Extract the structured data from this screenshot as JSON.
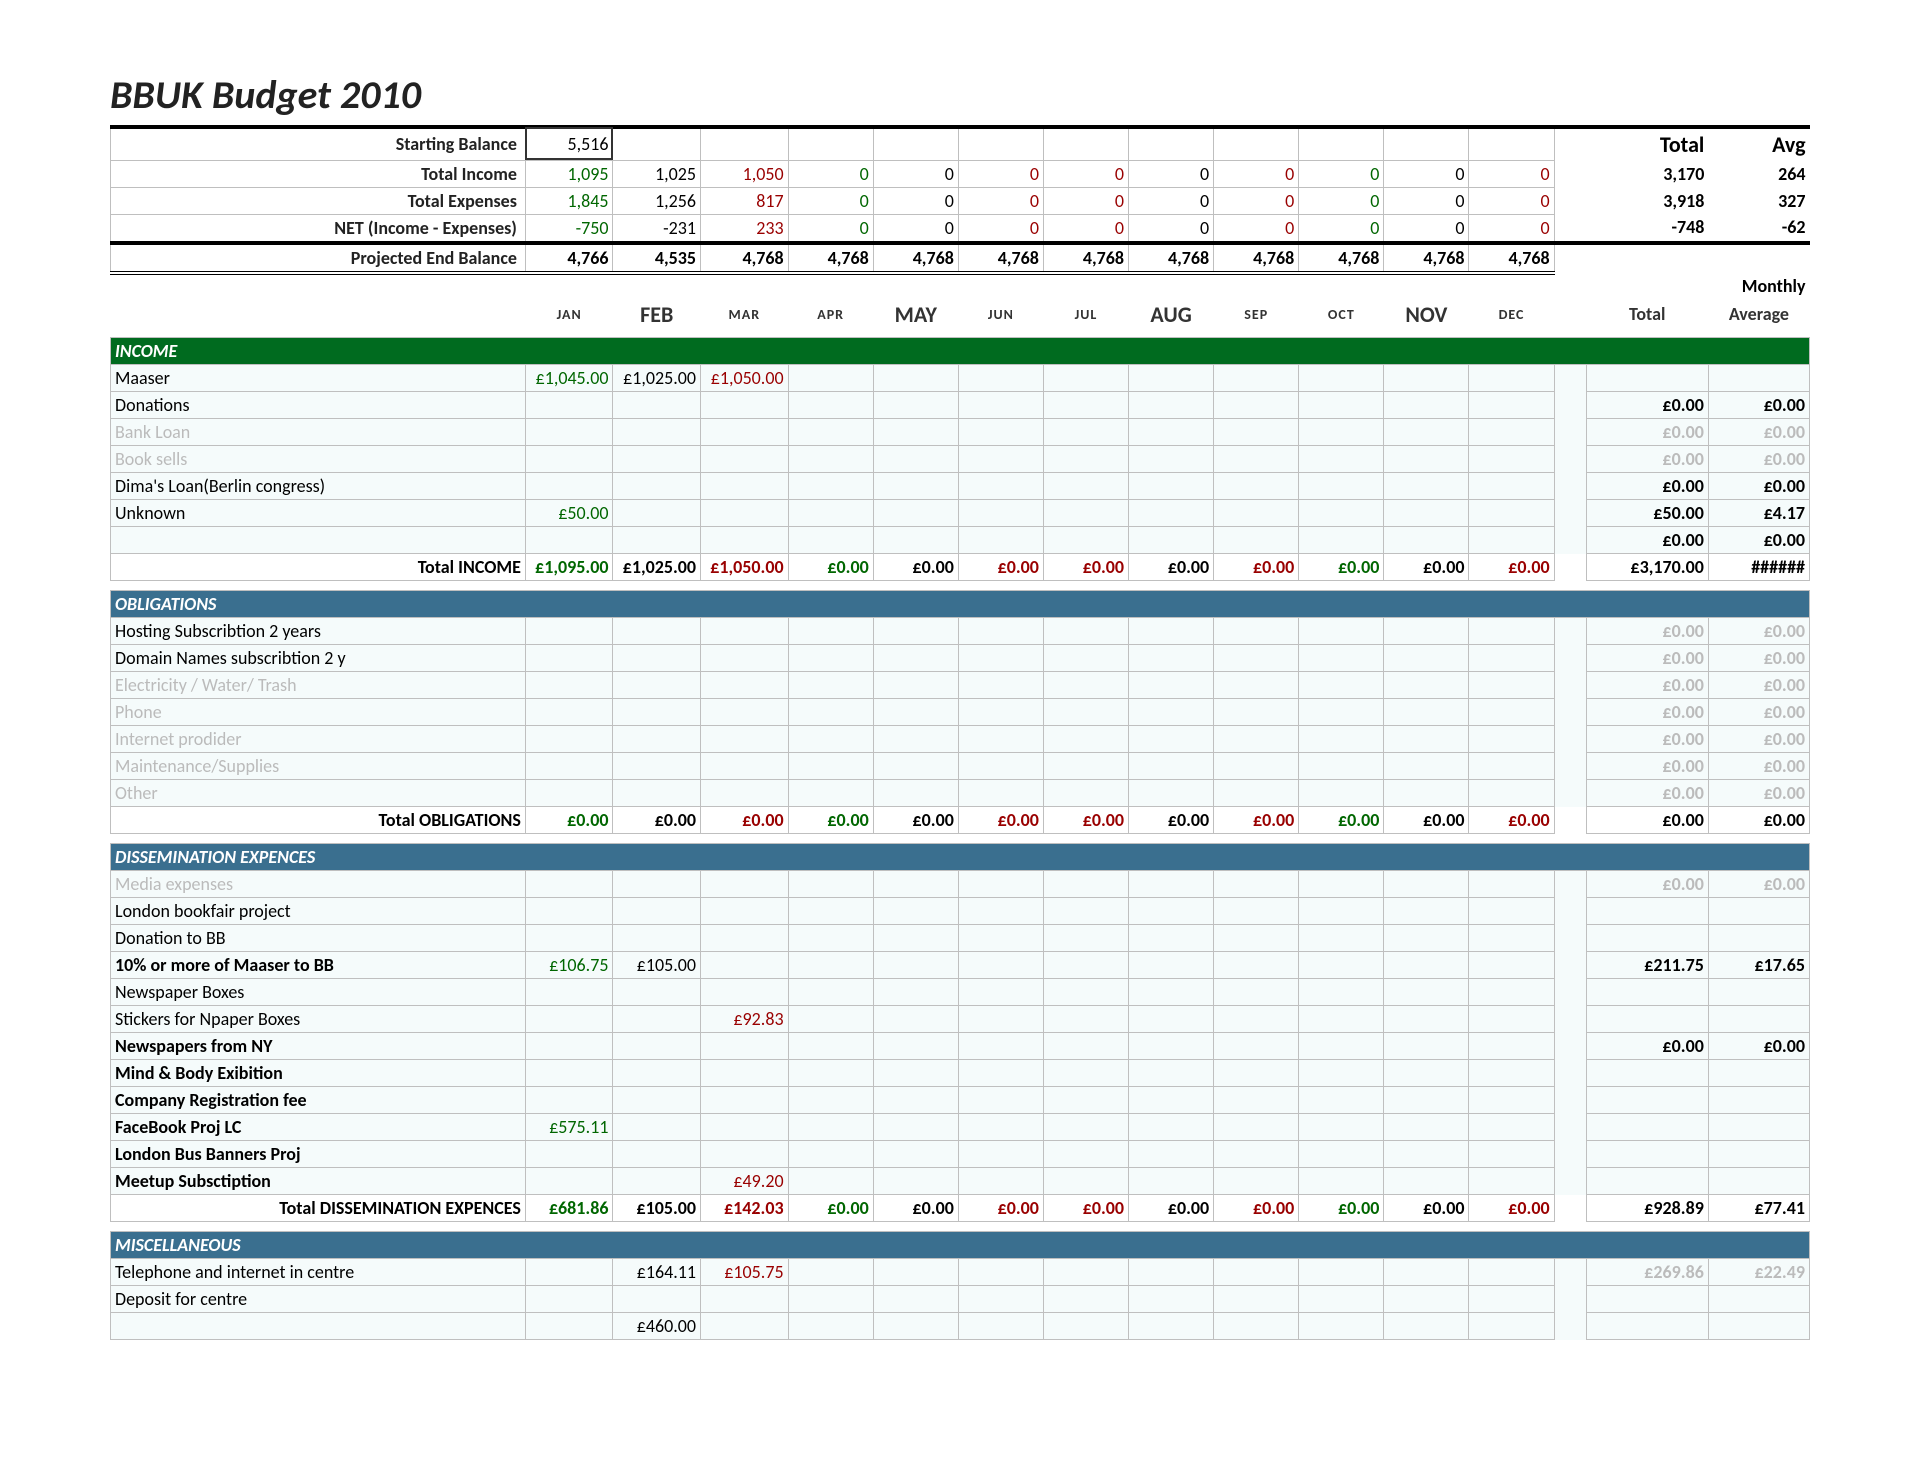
{
  "title": "BBUK Budget 2010",
  "months": [
    "JAN",
    "FEB",
    "MAR",
    "APR",
    "MAY",
    "JUN",
    "JUL",
    "AUG",
    "SEP",
    "OCT",
    "NOV",
    "DEC"
  ],
  "month_emph": [
    0,
    1,
    0,
    0,
    1,
    0,
    0,
    1,
    0,
    0,
    1,
    0
  ],
  "month_color": [
    "grn",
    "",
    "red",
    "grn",
    "",
    "red",
    "red",
    "",
    "red",
    "grn",
    "",
    "red"
  ],
  "summary": {
    "rows": [
      {
        "label": "Starting Balance",
        "vals": [
          "5,516",
          "",
          "",
          "",
          "",
          "",
          "",
          "",
          "",
          "",
          "",
          ""
        ],
        "cls": [
          "boxed",
          "",
          "",
          "",
          "",
          "",
          "",
          "",
          "",
          "",
          "",
          ""
        ],
        "total": "",
        "avg": "",
        "labelHdr": [
          "",
          "Total",
          "Avg"
        ]
      },
      {
        "label": "Total Income",
        "vals": [
          "1,095",
          "1,025",
          "1,050",
          "0",
          "0",
          "0",
          "0",
          "0",
          "0",
          "0",
          "0",
          "0"
        ],
        "clr": [
          "green",
          "",
          "darkred",
          "green",
          "",
          "darkred",
          "darkred",
          "",
          "darkred",
          "green",
          "",
          "darkred"
        ],
        "total": "3,170",
        "avg": "264"
      },
      {
        "label": "Total Expenses",
        "vals": [
          "1,845",
          "1,256",
          "817",
          "0",
          "0",
          "0",
          "0",
          "0",
          "0",
          "0",
          "0",
          "0"
        ],
        "clr": [
          "green",
          "",
          "darkred",
          "green",
          "",
          "darkred",
          "darkred",
          "",
          "darkred",
          "green",
          "",
          "darkred"
        ],
        "total": "3,918",
        "avg": "327"
      },
      {
        "label": "NET (Income - Expenses)",
        "vals": [
          "-750",
          "-231",
          "233",
          "0",
          "0",
          "0",
          "0",
          "0",
          "0",
          "0",
          "0",
          "0"
        ],
        "clr": [
          "green",
          "",
          "darkred",
          "green",
          "",
          "darkred",
          "darkred",
          "",
          "darkred",
          "green",
          "",
          "darkred"
        ],
        "total": "-748",
        "avg": "-62",
        "underline": true
      },
      {
        "label": "Projected End Balance",
        "vals": [
          "4,766",
          "4,535",
          "4,768",
          "4,768",
          "4,768",
          "4,768",
          "4,768",
          "4,768",
          "4,768",
          "4,768",
          "4,768",
          "4,768"
        ],
        "total": "",
        "avg": "",
        "bold": true
      }
    ],
    "header_right": [
      "Total",
      "Avg"
    ],
    "monthly_lbl": "Monthly",
    "tot_avg_lbl": [
      "Total",
      "Average"
    ]
  },
  "sections": [
    {
      "name": "INCOME",
      "bar": "green",
      "rows": [
        {
          "label": "Maaser",
          "m": [
            "£1,045.00",
            "£1,025.00",
            "£1,050.00",
            "",
            "",
            "",
            "",
            "",
            "",
            "",
            "",
            ""
          ],
          "tot": "",
          "avg": ""
        },
        {
          "label": "Donations",
          "m": [
            "",
            "",
            "",
            "",
            "",
            "",
            "",
            "",
            "",
            "",
            "",
            ""
          ],
          "tot": "£0.00",
          "avg": "£0.00"
        },
        {
          "label": "Bank Loan",
          "grey": true,
          "m": [
            "",
            "",
            "",
            "",
            "",
            "",
            "",
            "",
            "",
            "",
            "",
            ""
          ],
          "tot": "£0.00",
          "avg": "£0.00",
          "tgrey": true
        },
        {
          "label": "Book sells",
          "grey": true,
          "m": [
            "",
            "",
            "",
            "",
            "",
            "",
            "",
            "",
            "",
            "",
            "",
            ""
          ],
          "tot": "£0.00",
          "avg": "£0.00",
          "tgrey": true
        },
        {
          "label": "Dima's Loan(Berlin congress)",
          "m": [
            "",
            "",
            "",
            "",
            "",
            "",
            "",
            "",
            "",
            "",
            "",
            ""
          ],
          "tot": "£0.00",
          "avg": "£0.00"
        },
        {
          "label": "Unknown",
          "m": [
            "£50.00",
            "",
            "",
            "",
            "",
            "",
            "",
            "",
            "",
            "",
            "",
            ""
          ],
          "tot": "£50.00",
          "avg": "£4.17"
        },
        {
          "label": "",
          "m": [
            "",
            "",
            "",
            "",
            "",
            "",
            "",
            "",
            "",
            "",
            "",
            ""
          ],
          "tot": "£0.00",
          "avg": "£0.00"
        }
      ],
      "total": {
        "label": "Total INCOME",
        "m": [
          "£1,095.00",
          "£1,025.00",
          "£1,050.00",
          "£0.00",
          "£0.00",
          "£0.00",
          "£0.00",
          "£0.00",
          "£0.00",
          "£0.00",
          "£0.00",
          "£0.00"
        ],
        "tot": "£3,170.00",
        "avg": "######"
      }
    },
    {
      "name": "OBLIGATIONS",
      "bar": "blue",
      "rows": [
        {
          "label": "Hosting Subscribtion 2 years",
          "m": [
            "",
            "",
            "",
            "",
            "",
            "",
            "",
            "",
            "",
            "",
            "",
            ""
          ],
          "tot": "£0.00",
          "avg": "£0.00",
          "tgrey": true
        },
        {
          "label": "Domain Names subscribtion 2 y",
          "m": [
            "",
            "",
            "",
            "",
            "",
            "",
            "",
            "",
            "",
            "",
            "",
            ""
          ],
          "tot": "£0.00",
          "avg": "£0.00",
          "tgrey": true
        },
        {
          "label": "Electricity / Water/ Trash",
          "grey": true,
          "m": [
            "",
            "",
            "",
            "",
            "",
            "",
            "",
            "",
            "",
            "",
            "",
            ""
          ],
          "tot": "£0.00",
          "avg": "£0.00",
          "tgrey": true
        },
        {
          "label": "Phone",
          "grey": true,
          "m": [
            "",
            "",
            "",
            "",
            "",
            "",
            "",
            "",
            "",
            "",
            "",
            ""
          ],
          "tot": "£0.00",
          "avg": "£0.00",
          "tgrey": true
        },
        {
          "label": "Internet prodider",
          "grey": true,
          "m": [
            "",
            "",
            "",
            "",
            "",
            "",
            "",
            "",
            "",
            "",
            "",
            ""
          ],
          "tot": "£0.00",
          "avg": "£0.00",
          "tgrey": true
        },
        {
          "label": "Maintenance/Supplies",
          "grey": true,
          "m": [
            "",
            "",
            "",
            "",
            "",
            "",
            "",
            "",
            "",
            "",
            "",
            ""
          ],
          "tot": "£0.00",
          "avg": "£0.00",
          "tgrey": true
        },
        {
          "label": "Other",
          "grey": true,
          "m": [
            "",
            "",
            "",
            "",
            "",
            "",
            "",
            "",
            "",
            "",
            "",
            ""
          ],
          "tot": "£0.00",
          "avg": "£0.00",
          "tgrey": true
        }
      ],
      "total": {
        "label": "Total OBLIGATIONS",
        "m": [
          "£0.00",
          "£0.00",
          "£0.00",
          "£0.00",
          "£0.00",
          "£0.00",
          "£0.00",
          "£0.00",
          "£0.00",
          "£0.00",
          "£0.00",
          "£0.00"
        ],
        "tot": "£0.00",
        "avg": "£0.00"
      }
    },
    {
      "name": "DISSEMINATION EXPENCES",
      "bar": "blue",
      "rows": [
        {
          "label": "Media expenses",
          "grey": true,
          "m": [
            "",
            "",
            "",
            "",
            "",
            "",
            "",
            "",
            "",
            "",
            "",
            ""
          ],
          "tot": "£0.00",
          "avg": "£0.00",
          "tgrey": true
        },
        {
          "label": "London bookfair project",
          "m": [
            "",
            "",
            "",
            "",
            "",
            "",
            "",
            "",
            "",
            "",
            "",
            ""
          ],
          "tot": "",
          "avg": ""
        },
        {
          "label": "Donation to BB",
          "m": [
            "",
            "",
            "",
            "",
            "",
            "",
            "",
            "",
            "",
            "",
            "",
            ""
          ],
          "tot": "",
          "avg": ""
        },
        {
          "label": "10% or more of Maaser to BB",
          "bold": true,
          "m": [
            "£106.75",
            "£105.00",
            "",
            "",
            "",
            "",
            "",
            "",
            "",
            "",
            "",
            ""
          ],
          "tot": "£211.75",
          "avg": "£17.65"
        },
        {
          "label": "Newspaper Boxes",
          "m": [
            "",
            "",
            "",
            "",
            "",
            "",
            "",
            "",
            "",
            "",
            "",
            ""
          ],
          "tot": "",
          "avg": ""
        },
        {
          "label": "Stickers for Npaper Boxes",
          "m": [
            "",
            "",
            "£92.83",
            "",
            "",
            "",
            "",
            "",
            "",
            "",
            "",
            ""
          ],
          "tot": "",
          "avg": ""
        },
        {
          "label": "Newspapers from NY",
          "bold": true,
          "m": [
            "",
            "",
            "",
            "",
            "",
            "",
            "",
            "",
            "",
            "",
            "",
            ""
          ],
          "tot": "£0.00",
          "avg": "£0.00"
        },
        {
          "label": "Mind & Body Exibition",
          "bold": true,
          "m": [
            "",
            "",
            "",
            "",
            "",
            "",
            "",
            "",
            "",
            "",
            "",
            ""
          ],
          "tot": "",
          "avg": ""
        },
        {
          "label": "Company Registration fee",
          "bold": true,
          "m": [
            "",
            "",
            "",
            "",
            "",
            "",
            "",
            "",
            "",
            "",
            "",
            ""
          ],
          "tot": "",
          "avg": ""
        },
        {
          "label": "FaceBook Proj LC",
          "bold": true,
          "m": [
            "£575.11",
            "",
            "",
            "",
            "",
            "",
            "",
            "",
            "",
            "",
            "",
            ""
          ],
          "tot": "",
          "avg": ""
        },
        {
          "label": "London Bus Banners Proj",
          "bold": true,
          "m": [
            "",
            "",
            "",
            "",
            "",
            "",
            "",
            "",
            "",
            "",
            "",
            ""
          ],
          "tot": "",
          "avg": ""
        },
        {
          "label": "Meetup Subsctiption",
          "bold": true,
          "m": [
            "",
            "",
            "£49.20",
            "",
            "",
            "",
            "",
            "",
            "",
            "",
            "",
            ""
          ],
          "tot": "",
          "avg": ""
        }
      ],
      "total": {
        "label": "Total DISSEMINATION EXPENCES",
        "m": [
          "£681.86",
          "£105.00",
          "£142.03",
          "£0.00",
          "£0.00",
          "£0.00",
          "£0.00",
          "£0.00",
          "£0.00",
          "£0.00",
          "£0.00",
          "£0.00"
        ],
        "tot": "£928.89",
        "avg": "£77.41"
      }
    },
    {
      "name": "MISCELLANEOUS",
      "bar": "blue",
      "rows": [
        {
          "label": "Telephone and internet in centre",
          "m": [
            "",
            "£164.11",
            "£105.75",
            "",
            "",
            "",
            "",
            "",
            "",
            "",
            "",
            ""
          ],
          "tot": "£269.86",
          "avg": "£22.49",
          "tgrey": true
        },
        {
          "label": "Deposit for centre",
          "m": [
            "",
            "",
            "",
            "",
            "",
            "",
            "",
            "",
            "",
            "",
            "",
            ""
          ],
          "tot": "",
          "avg": ""
        },
        {
          "label": "",
          "m": [
            "",
            "£460.00",
            "",
            "",
            "",
            "",
            "",
            "",
            "",
            "",
            "",
            ""
          ],
          "tot": "",
          "avg": ""
        }
      ]
    }
  ],
  "colors": {
    "bar_green": "#006b1f",
    "bar_blue": "#3a6f8f",
    "grid": "#bfbfbf",
    "green": "#006600",
    "darkred": "#990000",
    "grey": "#bbbbbb"
  }
}
